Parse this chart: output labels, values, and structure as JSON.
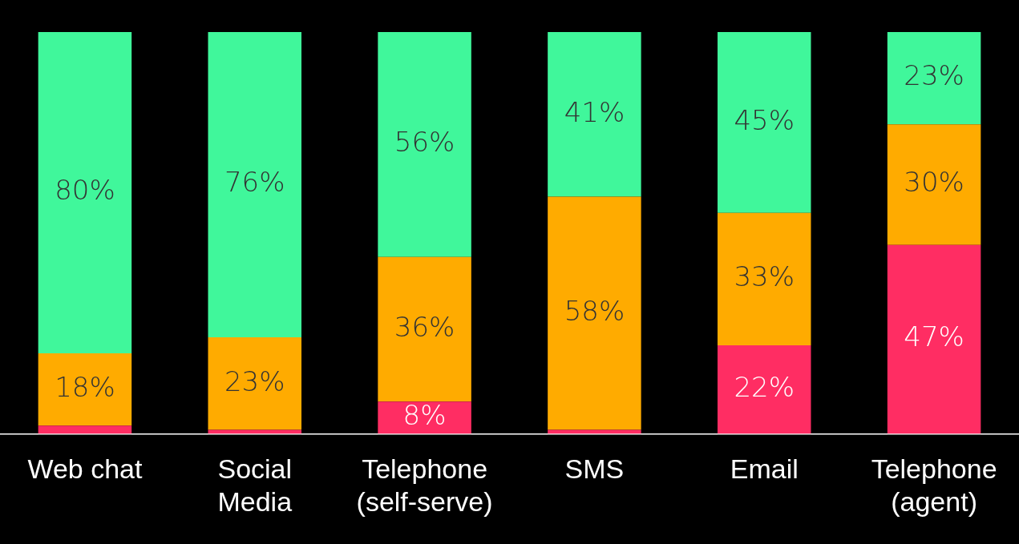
{
  "chart_data": {
    "type": "bar",
    "stacked": true,
    "tick_labels": "x",
    "ylim": [
      0,
      100
    ],
    "categories": [
      "Web chat",
      "Social Media",
      "Telephone (self-serve)",
      "SMS",
      "Email",
      "Telephone (agent)"
    ],
    "series": [
      {
        "color": "#ff2d63",
        "values": [
          2,
          1,
          8,
          1,
          22,
          47
        ],
        "value_labels": [
          null,
          null,
          "8%",
          null,
          "22%",
          "47%"
        ]
      },
      {
        "color": "#ffab00",
        "values": [
          18,
          23,
          36,
          58,
          33,
          30
        ],
        "value_labels": [
          "18%",
          "23%",
          "36%",
          "58%",
          "33%",
          "30%"
        ]
      },
      {
        "color": "#40f79b",
        "values": [
          80,
          76,
          56,
          41,
          45,
          23
        ],
        "value_labels": [
          "80%",
          "76%",
          "56%",
          "41%",
          "45%",
          "23%"
        ]
      }
    ],
    "grid": false,
    "legend": false
  }
}
